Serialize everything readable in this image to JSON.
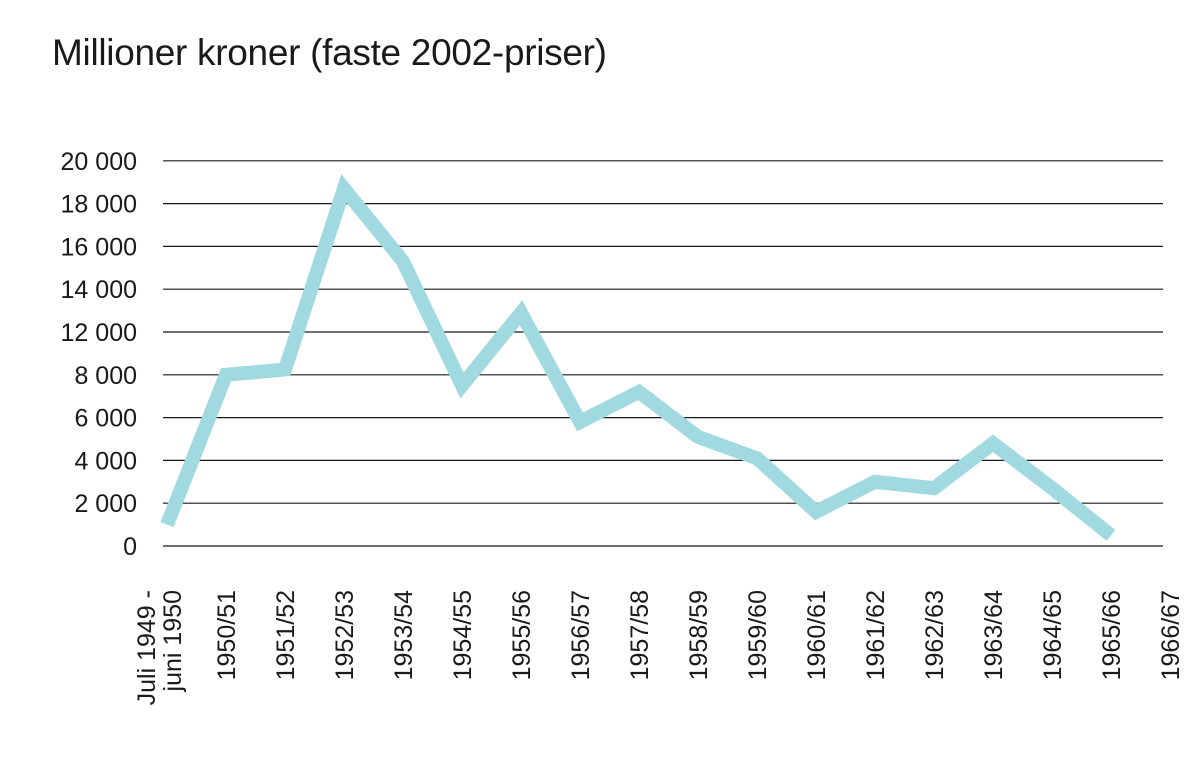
{
  "chart_data": {
    "type": "line",
    "title": "Millioner kroner (faste 2002-priser)",
    "xlabel": "",
    "ylabel": "",
    "categories": [
      [
        "Juli 1949 -",
        "juni 1950"
      ],
      [
        "1950/51"
      ],
      [
        "1951/52"
      ],
      [
        "1952/53"
      ],
      [
        "1953/54"
      ],
      [
        "1954/55"
      ],
      [
        "1955/56"
      ],
      [
        "1956/57"
      ],
      [
        "1957/58"
      ],
      [
        "1958/59"
      ],
      [
        "1959/60"
      ],
      [
        "1960/61"
      ],
      [
        "1961/62"
      ],
      [
        "1962/63"
      ],
      [
        "1963/64"
      ],
      [
        "1964/65"
      ],
      [
        "1965/66"
      ],
      [
        "1966/67"
      ]
    ],
    "y_tick_labels": [
      "0",
      "2 000",
      "4 000",
      "6 000",
      "8 000",
      "12 000",
      "14 000",
      "16 000",
      "18 000",
      "20 000"
    ],
    "series": [
      {
        "values": [
          1000,
          8000,
          8500,
          18700,
          15300,
          7500,
          12900,
          5800,
          7200,
          5100,
          4100,
          1600,
          3000,
          2700,
          4800,
          2700,
          500,
          null
        ],
        "color": "#a0d9df"
      }
    ],
    "grid": true,
    "legend": "none"
  }
}
